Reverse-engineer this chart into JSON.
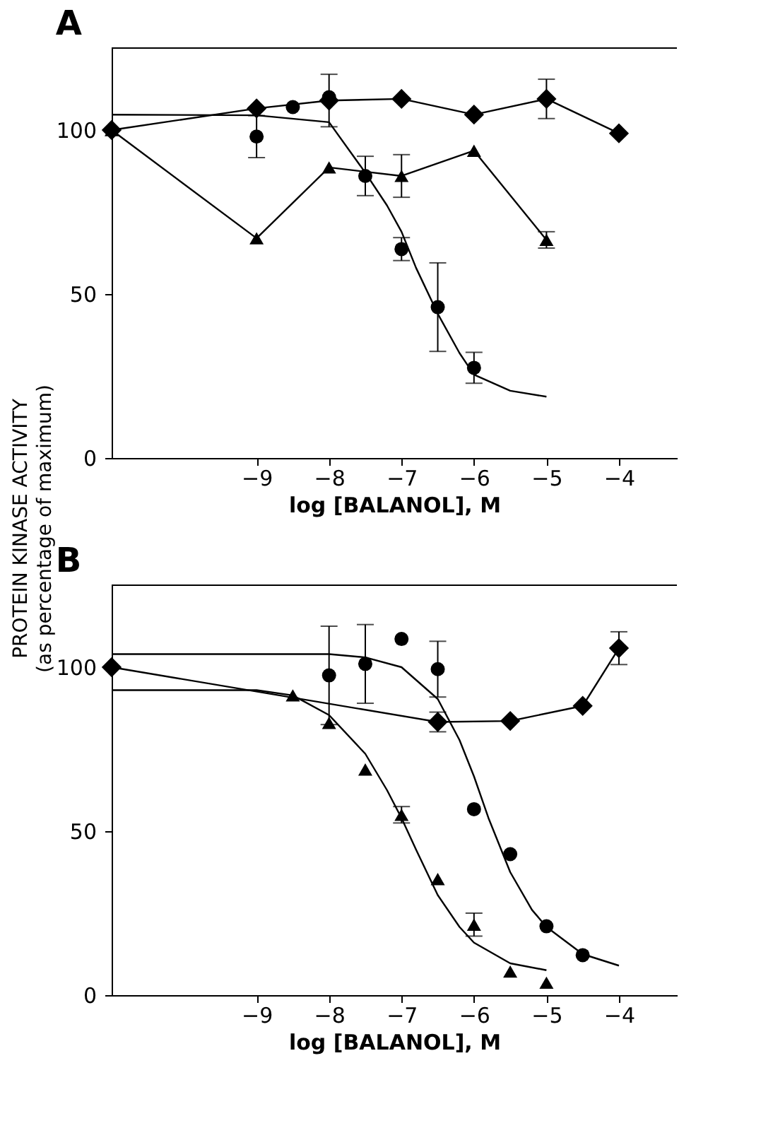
{
  "chart_data": [
    {
      "type": "line",
      "title": "A",
      "xlabel": "log [BALANOL], M",
      "ylabel": "PROTEIN KINASE ACTIVITY\n(as percentage of maximum)",
      "xlim": [
        -11,
        -3.2
      ],
      "xticks": [
        -9,
        -8,
        -7,
        -6,
        -5,
        -4
      ],
      "ylim": [
        0,
        125
      ],
      "yticks": [
        0,
        50,
        100
      ],
      "grid": false,
      "series": [
        {
          "marker": "diamond",
          "color": "#000000",
          "x": [
            -11,
            -9,
            -8,
            -7,
            -6,
            -5,
            -4
          ],
          "values": [
            100,
            106.6,
            109,
            109.5,
            104.7,
            109.5,
            99
          ],
          "errors": [
            null,
            null,
            8,
            null,
            null,
            6,
            null
          ]
        },
        {
          "marker": "triangle",
          "color": "#000000",
          "x": [
            -11,
            -9,
            -8,
            -7,
            -6,
            -5
          ],
          "values": [
            100,
            67,
            88.6,
            86,
            93.7,
            66.5
          ],
          "errors": [
            null,
            null,
            null,
            6.5,
            null,
            2.5
          ]
        },
        {
          "type": "scatter",
          "marker": "circle",
          "color": "#000000",
          "x": [
            -9,
            -8.5,
            -8,
            -7.5,
            -7,
            -6.5,
            -6
          ],
          "values": [
            98,
            107,
            110,
            86,
            63.7,
            46,
            27.5
          ],
          "errors": [
            6.4,
            null,
            null,
            6,
            3.5,
            13.5,
            4.7
          ]
        },
        {
          "marker": "none",
          "color": "#000000",
          "x": [
            -11,
            -9,
            -8,
            -7.5,
            -7.2,
            -7,
            -6.8,
            -6.5,
            -6.2,
            -6,
            -5.5,
            -5
          ],
          "values": [
            104.7,
            104.5,
            102.4,
            87,
            77,
            69,
            58,
            44,
            32,
            25.4,
            20.5,
            18.7
          ]
        }
      ]
    },
    {
      "type": "line",
      "title": "B",
      "xlabel": "log [BALANOL], M",
      "xlim": [
        -11,
        -3.2
      ],
      "xticks": [
        -9,
        -8,
        -7,
        -6,
        -5,
        -4
      ],
      "ylim": [
        0,
        125
      ],
      "yticks": [
        0,
        50,
        100
      ],
      "grid": false,
      "series": [
        {
          "marker": "diamond",
          "color": "#000000",
          "x": [
            -11,
            -6.5,
            -5.5,
            -4.5,
            -4
          ],
          "values": [
            100,
            83.3,
            83.6,
            88.2,
            105.8
          ],
          "errors": [
            null,
            3,
            null,
            null,
            5
          ]
        },
        {
          "type": "scatter",
          "marker": "circle",
          "color": "#000000",
          "x": [
            -8,
            -7.5,
            -7,
            -6.5,
            -6,
            -5.5,
            -5,
            -4.5
          ],
          "values": [
            97.5,
            101,
            108.6,
            99.4,
            56.7,
            43,
            21,
            12.2
          ],
          "errors": [
            15,
            12,
            null,
            8.5,
            null,
            null,
            null,
            null
          ]
        },
        {
          "marker": "none",
          "color": "#000000",
          "x": [
            -11,
            -8,
            -7.5,
            -7,
            -6.5,
            -6.2,
            -6,
            -5.8,
            -5.5,
            -5.2,
            -5,
            -4.5,
            -4
          ],
          "values": [
            104,
            104,
            103,
            100,
            90.3,
            77.8,
            66.7,
            54,
            37.5,
            26,
            20.8,
            12.5,
            9
          ]
        },
        {
          "type": "scatter",
          "marker": "triangle",
          "color": "#000000",
          "x": [
            -8.5,
            -8,
            -7.5,
            -7,
            -6.5,
            -6,
            -5.5,
            -5
          ],
          "values": [
            91.4,
            83,
            68.8,
            55,
            35.4,
            21.5,
            7.2,
            3.8
          ],
          "errors": [
            null,
            null,
            null,
            2.5,
            null,
            3.5,
            null,
            null
          ]
        },
        {
          "marker": "none",
          "color": "#000000",
          "x": [
            -11,
            -9,
            -8.5,
            -8,
            -7.5,
            -7.2,
            -7,
            -6.8,
            -6.5,
            -6.2,
            -6,
            -5.5,
            -5
          ],
          "values": [
            93,
            93,
            91.4,
            85.4,
            73.6,
            62.5,
            54,
            44.4,
            30.5,
            20.8,
            16,
            9.7,
            7.6
          ]
        }
      ]
    }
  ]
}
